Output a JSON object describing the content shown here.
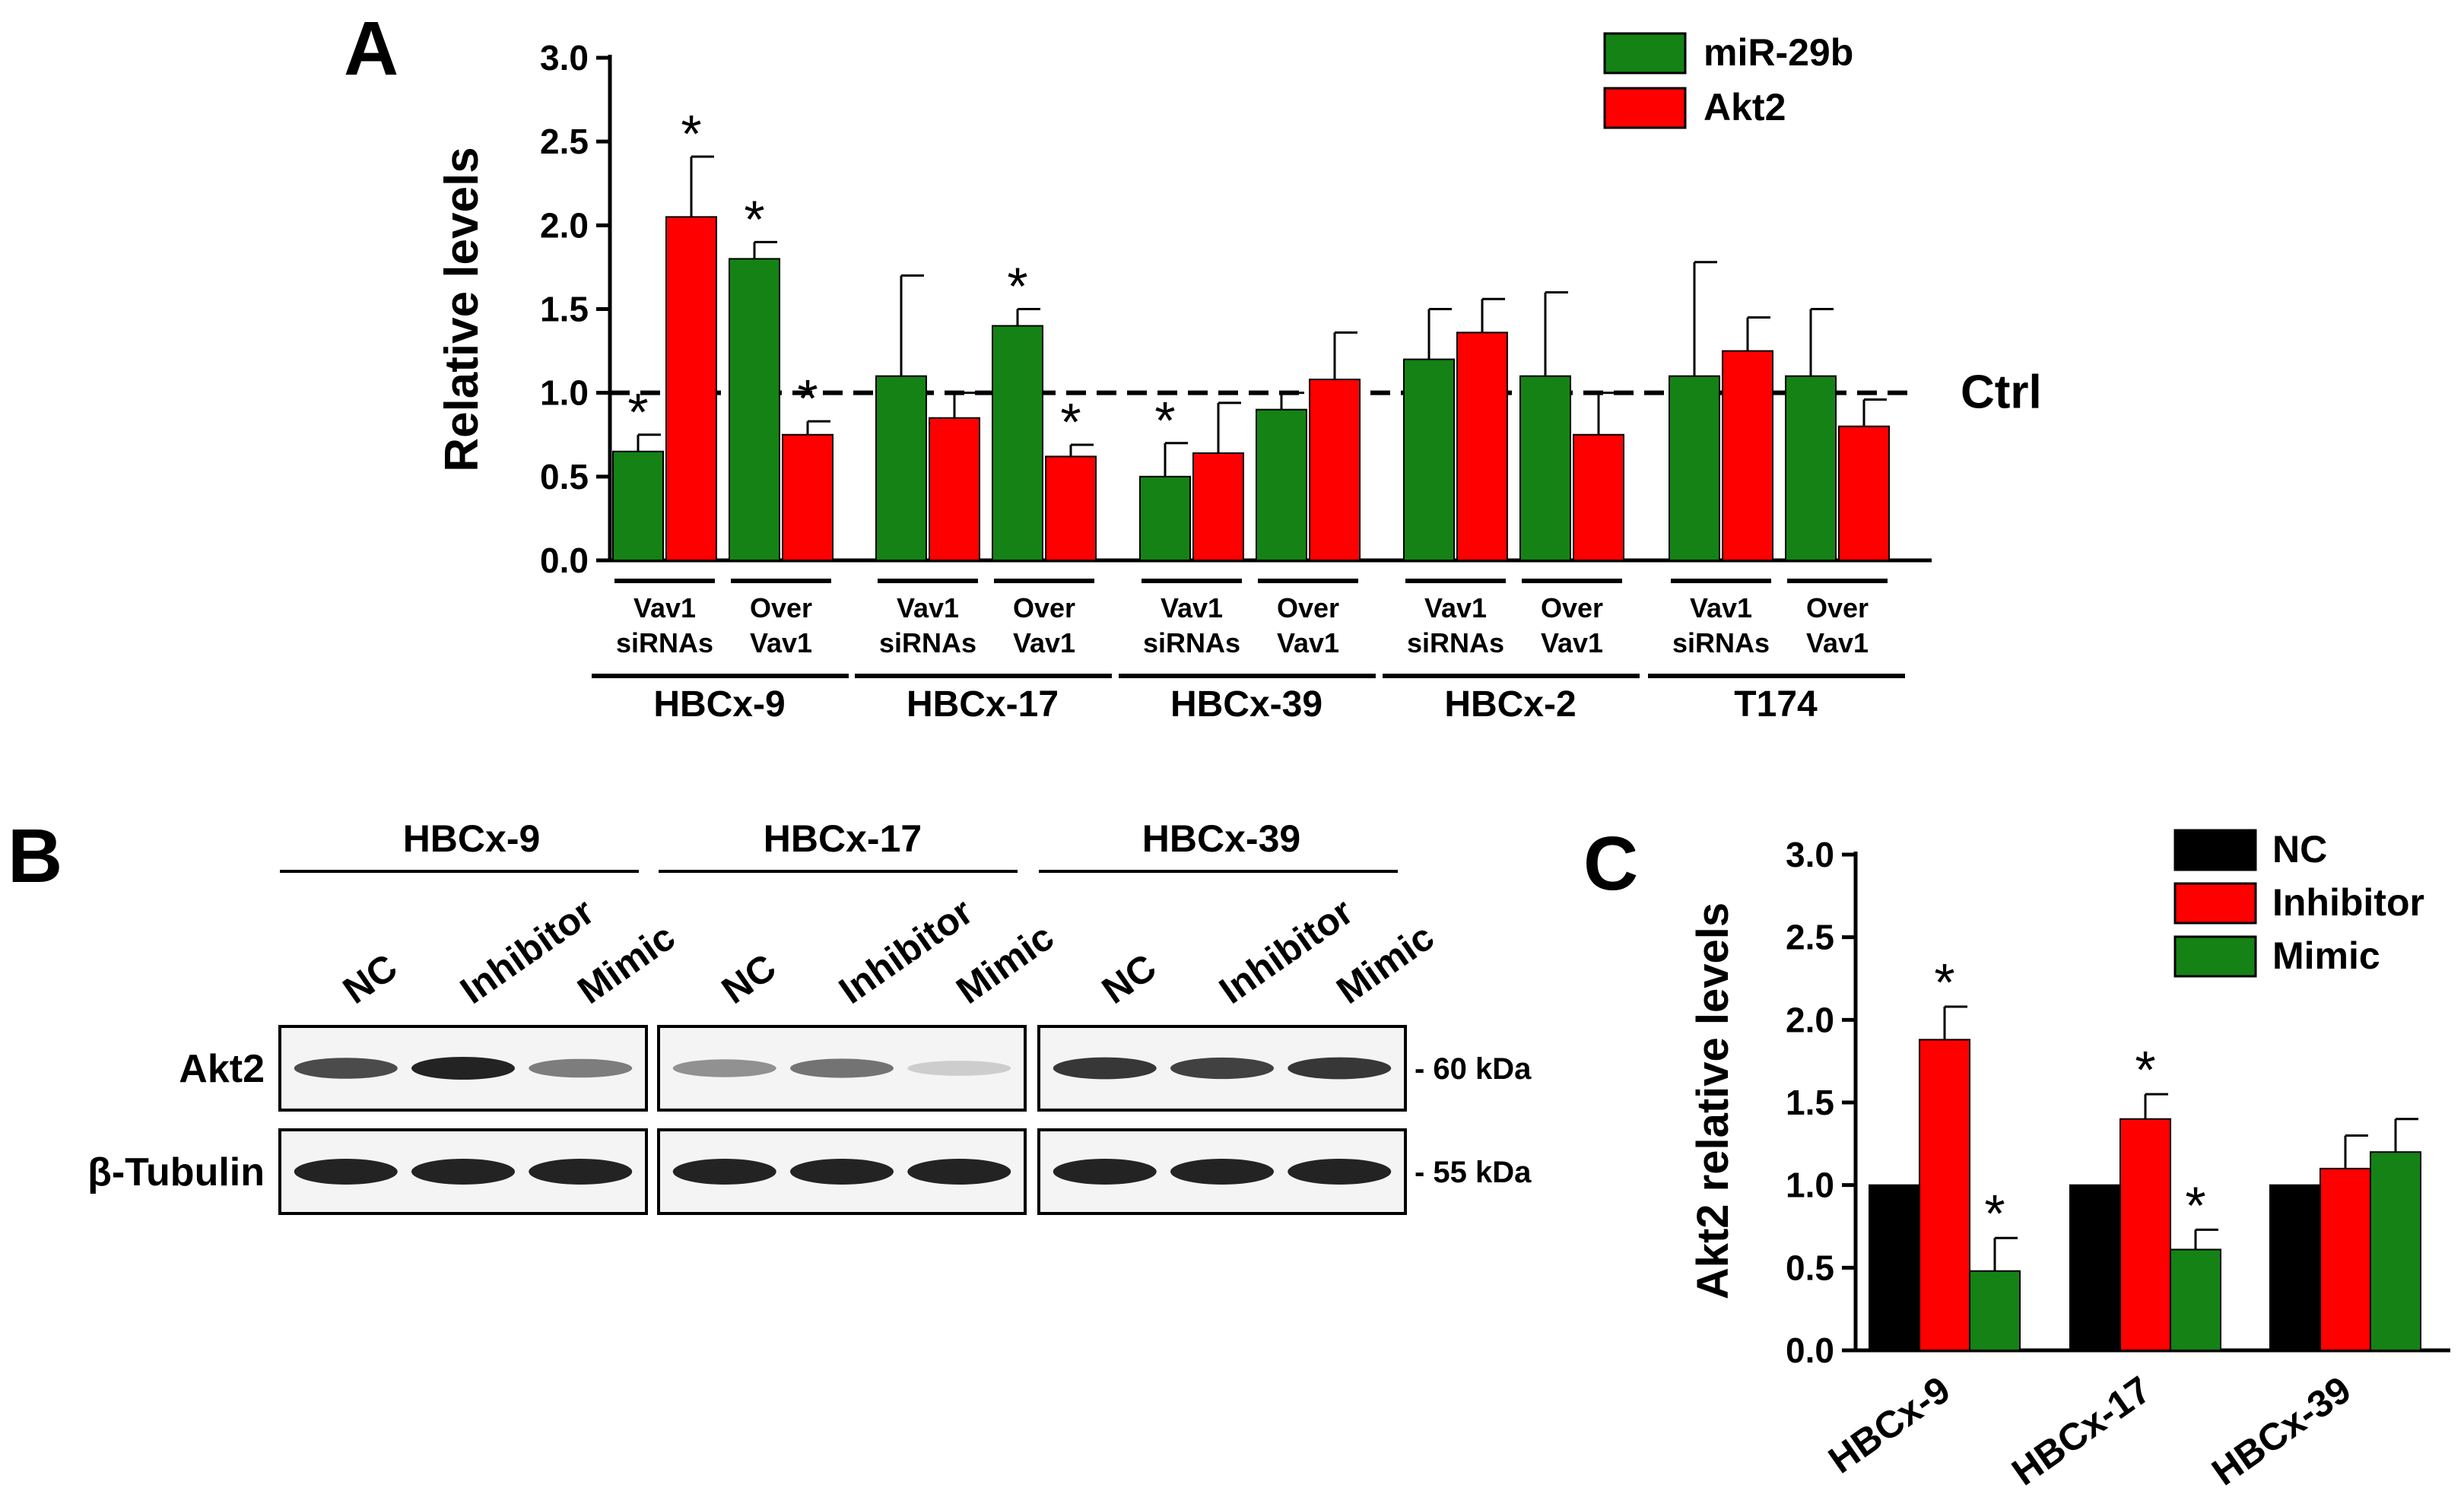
{
  "panels": {
    "a": {
      "letter": "A"
    },
    "b": {
      "letter": "B"
    },
    "c": {
      "letter": "C"
    }
  },
  "chart_data": [
    {
      "panel": "A",
      "type": "bar",
      "ylabel": "Relative levels",
      "ylim": [
        0,
        3.0
      ],
      "yticks": [
        "0.0",
        "0.5",
        "1.0",
        "1.5",
        "2.0",
        "2.5",
        "3.0"
      ],
      "grid": false,
      "legend_position": "top-right",
      "reference_line": {
        "y": 1.0,
        "label": "Ctrl",
        "style": "dashed"
      },
      "condition_labels": [
        [
          "Vav1",
          "siRNAs"
        ],
        [
          "Over",
          "Vav1"
        ]
      ],
      "groups": [
        "HBCx-9",
        "HBCx-17",
        "HBCx-39",
        "HBCx-2",
        "T174"
      ],
      "categories": [
        "HBCx-9 Vav1 siRNAs",
        "HBCx-9 Over Vav1",
        "HBCx-17 Vav1 siRNAs",
        "HBCx-17 Over Vav1",
        "HBCx-39 Vav1 siRNAs",
        "HBCx-39 Over Vav1",
        "HBCx-2 Vav1 siRNAs",
        "HBCx-2 Over Vav1",
        "T174 Vav1 siRNAs",
        "T174 Over Vav1"
      ],
      "series": [
        {
          "name": "miR-29b",
          "color": "#158215",
          "values": [
            0.65,
            1.8,
            1.1,
            1.4,
            0.5,
            0.9,
            1.2,
            1.1,
            1.1,
            1.1
          ],
          "errors": [
            0.1,
            0.1,
            0.6,
            0.1,
            0.2,
            0.1,
            0.3,
            0.5,
            0.68,
            0.4
          ],
          "significant": [
            true,
            true,
            false,
            true,
            true,
            false,
            false,
            false,
            false,
            false
          ]
        },
        {
          "name": "Akt2",
          "color": "#ff0000",
          "values": [
            2.05,
            0.75,
            0.85,
            0.62,
            0.64,
            1.08,
            1.36,
            0.75,
            1.25,
            0.8
          ],
          "errors": [
            0.36,
            0.08,
            0.15,
            0.07,
            0.3,
            0.28,
            0.2,
            0.25,
            0.2,
            0.16
          ],
          "significant": [
            true,
            true,
            false,
            true,
            false,
            false,
            false,
            false,
            false,
            false
          ]
        }
      ],
      "annotation": "*"
    },
    {
      "panel": "C",
      "type": "bar",
      "ylabel": "Akt2 relative levels",
      "ylim": [
        0,
        3.0
      ],
      "yticks": [
        "0.0",
        "0.5",
        "1.0",
        "1.5",
        "2.0",
        "2.5",
        "3.0"
      ],
      "grid": false,
      "legend_position": "top-right",
      "categories": [
        "HBCx-9",
        "HBCx-17",
        "HBCx-39"
      ],
      "series": [
        {
          "name": "NC",
          "color": "#000000",
          "values": [
            1.0,
            1.0,
            1.0
          ],
          "errors": [
            0,
            0,
            0
          ],
          "significant": [
            false,
            false,
            false
          ]
        },
        {
          "name": "Inhibitor",
          "color": "#ff0000",
          "values": [
            1.88,
            1.4,
            1.1
          ],
          "errors": [
            0.2,
            0.15,
            0.2
          ],
          "significant": [
            true,
            true,
            false
          ]
        },
        {
          "name": "Mimic",
          "color": "#158215",
          "values": [
            0.48,
            0.61,
            1.2
          ],
          "errors": [
            0.2,
            0.12,
            0.2
          ],
          "significant": [
            true,
            true,
            false
          ]
        }
      ],
      "annotation": "*"
    }
  ],
  "western_blot": {
    "groups": [
      "HBCx-9",
      "HBCx-17",
      "HBCx-39"
    ],
    "lanes": [
      "NC",
      "Inhibitor",
      "Mimic"
    ],
    "rows": [
      {
        "label": "Akt2",
        "marker": "- 60 kDa"
      },
      {
        "label": "β-Tubulin",
        "marker": "- 55 kDa"
      }
    ],
    "akt2_band_intensity": [
      [
        0.8,
        1.0,
        0.55
      ],
      [
        0.45,
        0.6,
        0.15
      ],
      [
        0.9,
        0.85,
        0.9
      ]
    ],
    "tubulin_band_intensity": [
      [
        1.0,
        1.0,
        1.0
      ],
      [
        1.0,
        1.0,
        1.0
      ],
      [
        1.0,
        1.0,
        1.0
      ]
    ]
  }
}
